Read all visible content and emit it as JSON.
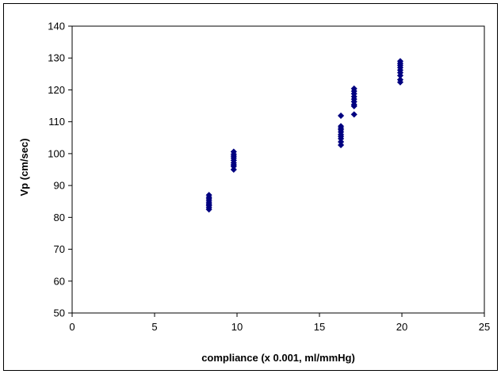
{
  "chart_data": {
    "type": "scatter",
    "title": "",
    "xlabel": "compliance (x 0.001, ml/mmHg)",
    "ylabel": "Vp (cm/sec)",
    "xlim": [
      0,
      25
    ],
    "ylim": [
      50,
      140
    ],
    "x_ticks": [
      "0",
      "5",
      "10",
      "15",
      "20",
      "25"
    ],
    "y_ticks": [
      "50",
      "60",
      "70",
      "80",
      "90",
      "100",
      "110",
      "120",
      "130",
      "140"
    ],
    "grid": false,
    "legend": "none",
    "marker": "diamond",
    "marker_color": "#000080",
    "series": [
      {
        "x": [
          8.3,
          8.3,
          8.3,
          8.3,
          8.3,
          8.3,
          8.3,
          8.3,
          8.3,
          9.8,
          9.8,
          9.8,
          9.8,
          9.8,
          9.8,
          9.8,
          9.8,
          9.8,
          16.3,
          16.3,
          16.3,
          16.3,
          16.3,
          16.3,
          16.3,
          16.3,
          16.3,
          16.3,
          17.1,
          17.1,
          17.1,
          17.1,
          17.1,
          17.1,
          17.1,
          17.1,
          17.1,
          19.9,
          19.9,
          19.9,
          19.9,
          19.9,
          19.9,
          19.9,
          19.9,
          19.9
        ],
        "y": [
          87,
          86.3,
          85.8,
          85.2,
          84.6,
          84.1,
          83.7,
          83.1,
          82.5,
          100.6,
          99.8,
          99.2,
          98.6,
          97.9,
          97.1,
          96.5,
          96,
          95,
          111.9,
          108.6,
          108,
          107.5,
          106.8,
          106,
          105.4,
          104.7,
          103.7,
          102.7,
          120.4,
          119.6,
          118.8,
          117.9,
          117.1,
          116.3,
          115.4,
          114.9,
          112.3,
          129,
          128.3,
          127.7,
          127,
          126.2,
          125.4,
          124.5,
          123.2,
          122.4
        ]
      }
    ]
  }
}
